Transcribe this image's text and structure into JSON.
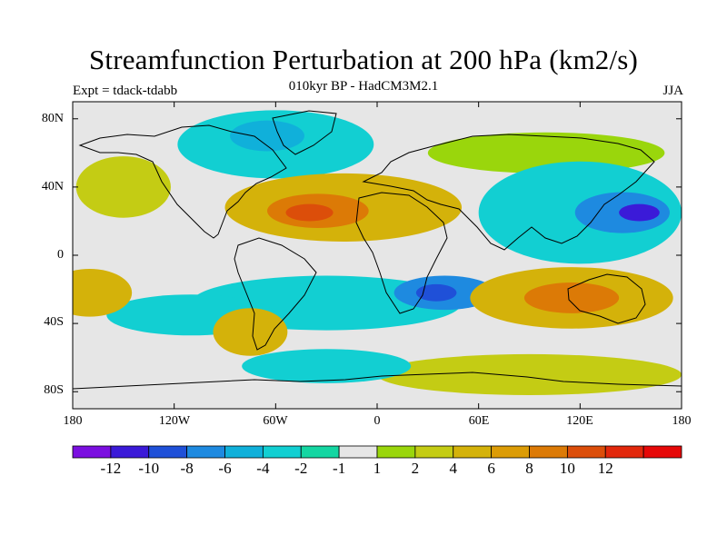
{
  "title": "Streamfunction Perturbation at 200 hPa (km2/s)",
  "subtitle": "010kyr BP - HadCM3M2.1",
  "experiment": "Expt = tdack-tdabb",
  "season": "JJA",
  "lat_labels": [
    "80N",
    "40N",
    "0",
    "40S",
    "80S"
  ],
  "lon_labels": [
    "180",
    "120W",
    "60W",
    "0",
    "60E",
    "120E",
    "180"
  ],
  "colorbar": {
    "colors": [
      "#7b0fe0",
      "#3b1ad8",
      "#1f50d8",
      "#1e8ae0",
      "#10b0da",
      "#12cfd2",
      "#14d6a2",
      "#e6e6e6",
      "#9ad60c",
      "#c4cc14",
      "#d4b20a",
      "#dc9c06",
      "#dc7a06",
      "#dc4e0a",
      "#e2280c",
      "#e60808"
    ],
    "labels": [
      "-12",
      "-10",
      "-8",
      "-6",
      "-4",
      "-2",
      "-1",
      "1",
      "2",
      "4",
      "6",
      "8",
      "10",
      "12"
    ]
  },
  "map": {
    "fields": [
      {
        "name": "arctic-negative",
        "level": 5,
        "lon": -60,
        "lat": 65,
        "rx": 58,
        "ry": 20
      },
      {
        "name": "arctic-negative-core",
        "level": 4,
        "lon": -65,
        "lat": 70,
        "rx": 22,
        "ry": 9
      },
      {
        "name": "n-pacific-positive",
        "level": 9,
        "lon": -150,
        "lat": 40,
        "rx": 28,
        "ry": 18
      },
      {
        "name": "n-atlantic-positive",
        "level": 10,
        "lon": -20,
        "lat": 28,
        "rx": 70,
        "ry": 20
      },
      {
        "name": "n-atlantic-positive-core",
        "level": 12,
        "lon": -35,
        "lat": 26,
        "rx": 30,
        "ry": 10
      },
      {
        "name": "n-atlantic-max",
        "level": 13,
        "lon": -40,
        "lat": 25,
        "rx": 14,
        "ry": 5
      },
      {
        "name": "n-eurasia-positive",
        "level": 8,
        "lon": 100,
        "lat": 60,
        "rx": 70,
        "ry": 12
      },
      {
        "name": "w-pacific-negative",
        "level": 5,
        "lon": 120,
        "lat": 25,
        "rx": 60,
        "ry": 30
      },
      {
        "name": "w-pacific-negative-core",
        "level": 3,
        "lon": 145,
        "lat": 25,
        "rx": 28,
        "ry": 12
      },
      {
        "name": "w-pacific-min",
        "level": 1,
        "lon": 155,
        "lat": 25,
        "rx": 12,
        "ry": 5
      },
      {
        "name": "s-atlantic-negative",
        "level": 5,
        "lon": -30,
        "lat": -28,
        "rx": 80,
        "ry": 16
      },
      {
        "name": "s-indian-negative",
        "level": 3,
        "lon": 40,
        "lat": -22,
        "rx": 30,
        "ry": 10
      },
      {
        "name": "s-indian-min",
        "level": 2,
        "lon": 35,
        "lat": -22,
        "rx": 12,
        "ry": 5
      },
      {
        "name": "s-pacific-negative",
        "level": 5,
        "lon": -110,
        "lat": -35,
        "rx": 50,
        "ry": 12
      },
      {
        "name": "australia-positive",
        "level": 10,
        "lon": 115,
        "lat": -25,
        "rx": 60,
        "ry": 18
      },
      {
        "name": "australia-positive-core",
        "level": 12,
        "lon": 115,
        "lat": -25,
        "rx": 28,
        "ry": 9
      },
      {
        "name": "e-pacific-positive",
        "level": 10,
        "lon": -170,
        "lat": -22,
        "rx": 25,
        "ry": 14
      },
      {
        "name": "s-america-positive",
        "level": 10,
        "lon": -75,
        "lat": -45,
        "rx": 22,
        "ry": 14
      },
      {
        "name": "antarctic-positive",
        "level": 9,
        "lon": 90,
        "lat": -70,
        "rx": 90,
        "ry": 12
      },
      {
        "name": "antarctic-negative",
        "level": 5,
        "lon": -30,
        "lat": -65,
        "rx": 50,
        "ry": 10
      }
    ]
  }
}
